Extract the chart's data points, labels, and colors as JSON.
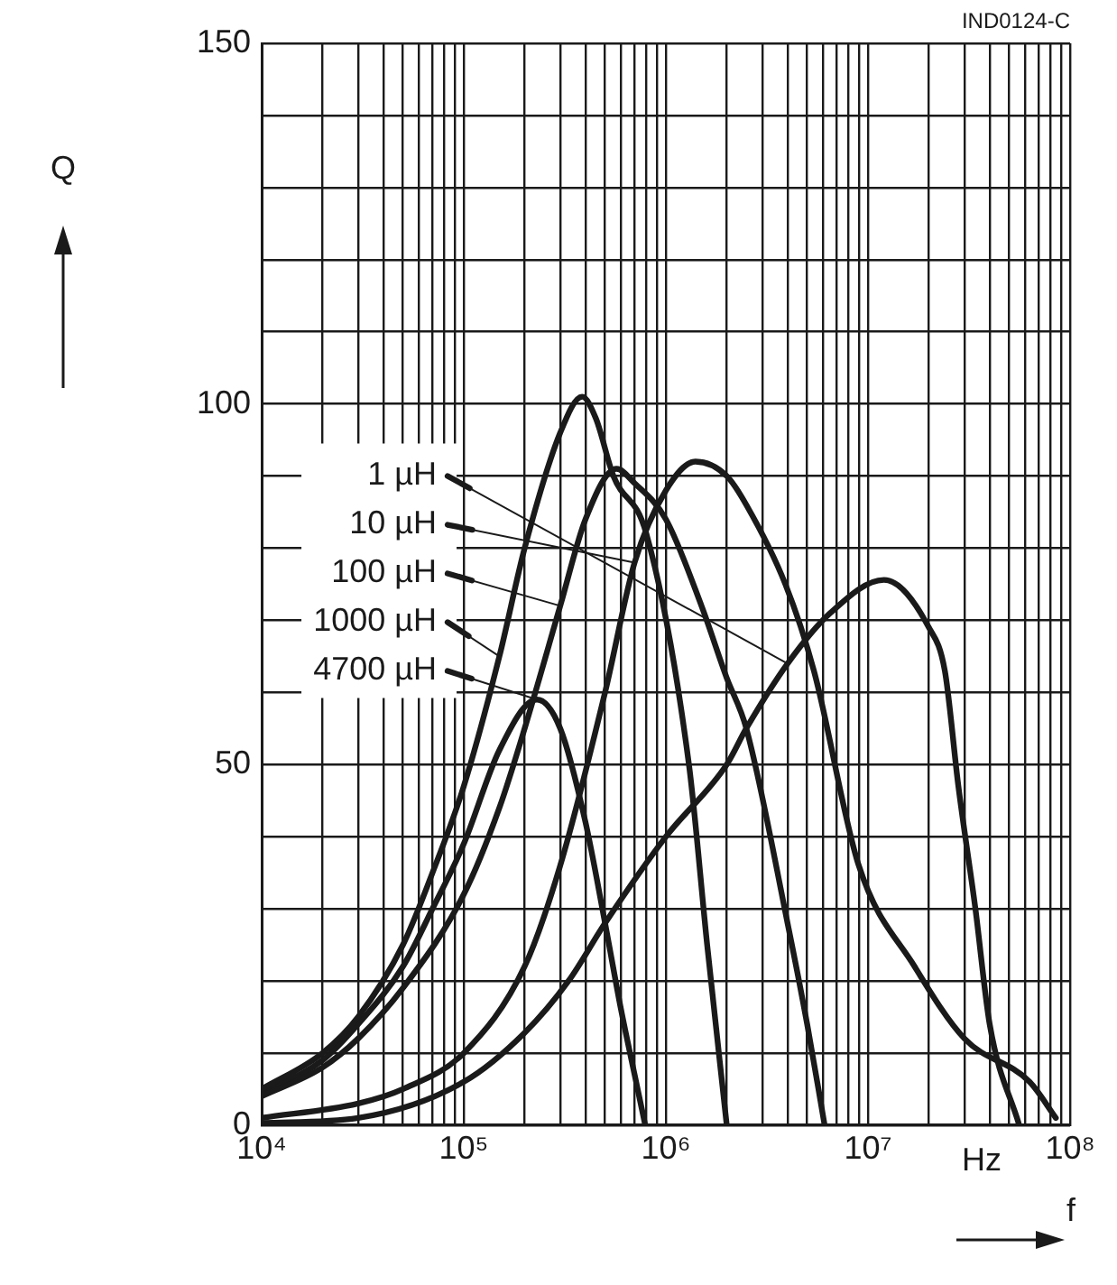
{
  "chart_data": {
    "type": "line",
    "xlabel": "f",
    "ylabel": "Q",
    "annotations": [
      "IND0124-C",
      "Hz"
    ],
    "log": "x",
    "grid": true,
    "legend": "left",
    "marker": "none",
    "line_style": "solid",
    "xlim": [
      10000,
      100000000
    ],
    "ylim": [
      0,
      150
    ],
    "xticks": [
      {
        "value": 10000,
        "label": "10⁴"
      },
      {
        "value": 20000,
        "label": null
      },
      {
        "value": 30000,
        "label": null
      },
      {
        "value": 40000,
        "label": null
      },
      {
        "value": 50000,
        "label": null
      },
      {
        "value": 60000,
        "label": null
      },
      {
        "value": 70000,
        "label": null
      },
      {
        "value": 80000,
        "label": null
      },
      {
        "value": 90000,
        "label": null
      },
      {
        "value": 100000,
        "label": "10⁵"
      },
      {
        "value": 200000,
        "label": null
      },
      {
        "value": 300000,
        "label": null
      },
      {
        "value": 400000,
        "label": null
      },
      {
        "value": 500000,
        "label": null
      },
      {
        "value": 600000,
        "label": null
      },
      {
        "value": 700000,
        "label": null
      },
      {
        "value": 800000,
        "label": null
      },
      {
        "value": 900000,
        "label": null
      },
      {
        "value": 1000000,
        "label": "10⁶"
      },
      {
        "value": 2000000,
        "label": null
      },
      {
        "value": 3000000,
        "label": null
      },
      {
        "value": 4000000,
        "label": null
      },
      {
        "value": 5000000,
        "label": null
      },
      {
        "value": 6000000,
        "label": null
      },
      {
        "value": 7000000,
        "label": null
      },
      {
        "value": 8000000,
        "label": null
      },
      {
        "value": 9000000,
        "label": null
      },
      {
        "value": 10000000,
        "label": "10⁷"
      },
      {
        "value": 20000000,
        "label": null
      },
      {
        "value": 30000000,
        "label": null
      },
      {
        "value": 40000000,
        "label": null
      },
      {
        "value": 50000000,
        "label": null
      },
      {
        "value": 60000000,
        "label": null
      },
      {
        "value": 70000000,
        "label": null
      },
      {
        "value": 80000000,
        "label": null
      },
      {
        "value": 90000000,
        "label": null
      },
      {
        "value": 100000000,
        "label": "10⁸"
      }
    ],
    "yticks": [
      0,
      {
        "value": 10,
        "label": null
      },
      {
        "value": 20,
        "label": null
      },
      {
        "value": 30,
        "label": null
      },
      {
        "value": 40,
        "label": null
      },
      50,
      {
        "value": 60,
        "label": null
      },
      {
        "value": 70,
        "label": null
      },
      {
        "value": 80,
        "label": null
      },
      {
        "value": 90,
        "label": null
      },
      100,
      {
        "value": 110,
        "label": null
      },
      {
        "value": 120,
        "label": null
      },
      {
        "value": 130,
        "label": null
      },
      {
        "value": 140,
        "label": null
      },
      150
    ],
    "series": [
      {
        "name": "1 µH",
        "color": "#1a1a1a",
        "x": [
          10000,
          30000,
          100000,
          200000,
          330000,
          500000,
          1000000,
          2000000,
          2500000,
          4000000,
          6500000,
          12000000,
          20000000,
          24000000,
          28000000,
          34000000,
          40000000,
          56000000
        ],
        "values": [
          0.3,
          1,
          6,
          12.8,
          20,
          28,
          40,
          50,
          55,
          64,
          71,
          75.6,
          69,
          63,
          47,
          30,
          14,
          0
        ]
      },
      {
        "name": "10 µH",
        "color": "#1a1a1a",
        "x": [
          10000,
          30000,
          50000,
          100000,
          200000,
          300000,
          500000,
          700000,
          1000000,
          1400000,
          2000000,
          2500000,
          3900000,
          5400000,
          9000000,
          17000000,
          30000000,
          63000000,
          85000000
        ],
        "values": [
          1,
          3,
          5,
          10,
          22,
          36,
          60,
          78,
          88,
          92,
          90,
          86,
          75,
          63,
          36,
          22,
          12,
          6,
          1
        ]
      },
      {
        "name": "100 µH",
        "color": "#1a1a1a",
        "x": [
          10000,
          20000,
          30000,
          50000,
          100000,
          150000,
          200000,
          300000,
          400000,
          570000,
          700000,
          1000000,
          1500000,
          2000000,
          2500000,
          4000000,
          5000000,
          6100000
        ],
        "values": [
          4,
          8,
          12,
          19,
          32,
          44,
          55,
          72,
          84,
          91,
          89,
          84,
          72,
          62,
          55,
          28,
          14,
          0
        ]
      },
      {
        "name": "1000 µH",
        "color": "#1a1a1a",
        "x": [
          10000,
          20000,
          30000,
          50000,
          70000,
          100000,
          150000,
          200000,
          300000,
          385000,
          450000,
          550000,
          800000,
          1300000,
          1600000,
          2000000
        ],
        "values": [
          5,
          10,
          15,
          25,
          35,
          47,
          65,
          80,
          96,
          101,
          98,
          90,
          82,
          50,
          25,
          0
        ]
      },
      {
        "name": "4700 µH",
        "color": "#1a1a1a",
        "x": [
          10000,
          20000,
          30000,
          50000,
          70000,
          100000,
          150000,
          230000,
          300000,
          400000,
          500000,
          600000,
          700000,
          790000
        ],
        "values": [
          4.5,
          9,
          14,
          22,
          30,
          39,
          52,
          59,
          55,
          42,
          28,
          16,
          7,
          0
        ]
      }
    ]
  }
}
